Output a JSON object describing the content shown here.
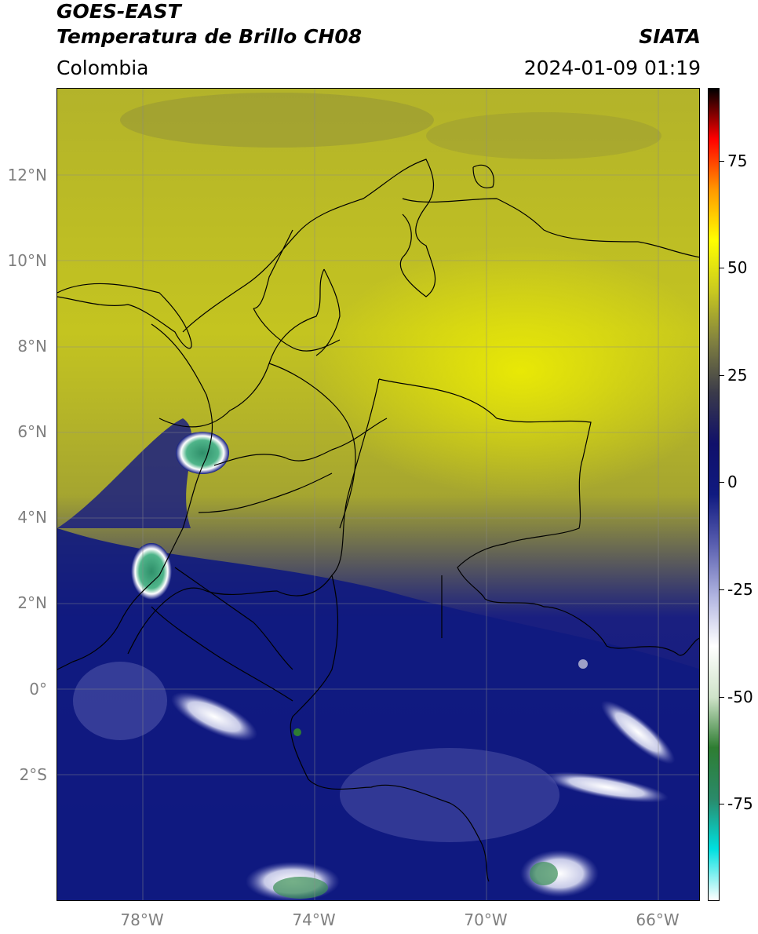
{
  "header": {
    "satellite": "GOES-EAST",
    "product": "Temperatura de Brillo CH08",
    "organization": "SIATA",
    "region": "Colombia",
    "timestamp": "2024-01-09 01:19"
  },
  "map": {
    "lon_range": [
      -80,
      -65
    ],
    "lat_range": [
      -5,
      14
    ],
    "grid_lines": true,
    "lat_ticks": [
      {
        "value": 12,
        "label": "12°N"
      },
      {
        "value": 10,
        "label": "10°N"
      },
      {
        "value": 8,
        "label": "8°N"
      },
      {
        "value": 6,
        "label": "6°N"
      },
      {
        "value": 4,
        "label": "4°N"
      },
      {
        "value": 2,
        "label": "2°N"
      },
      {
        "value": 0,
        "label": "0°"
      },
      {
        "value": -2,
        "label": "2°S"
      }
    ],
    "lon_ticks": [
      {
        "value": -78,
        "label": "78°W"
      },
      {
        "value": -74,
        "label": "74°W"
      },
      {
        "value": -70,
        "label": "70°W"
      },
      {
        "value": -66,
        "label": "66°W"
      }
    ]
  },
  "colorbar": {
    "range": [
      -95,
      90
    ],
    "ticks": [
      {
        "value": 75,
        "label": "75"
      },
      {
        "value": 50,
        "label": "50"
      },
      {
        "value": 25,
        "label": "25"
      },
      {
        "value": 0,
        "label": "0"
      },
      {
        "value": -25,
        "label": "-25"
      },
      {
        "value": -50,
        "label": "-50"
      },
      {
        "value": -75,
        "label": "-75"
      }
    ],
    "palette": [
      "#ffffff",
      "#00e0e0",
      "#2a8a6a",
      "#2e7d32",
      "#cfe3c9",
      "#ffffff",
      "#b0b4e0",
      "#5a5fb0",
      "#101a80",
      "#10106a",
      "#3a3a4a",
      "#808040",
      "#c8c820",
      "#ffff00",
      "#ff9900",
      "#ff0000",
      "#000000"
    ]
  }
}
